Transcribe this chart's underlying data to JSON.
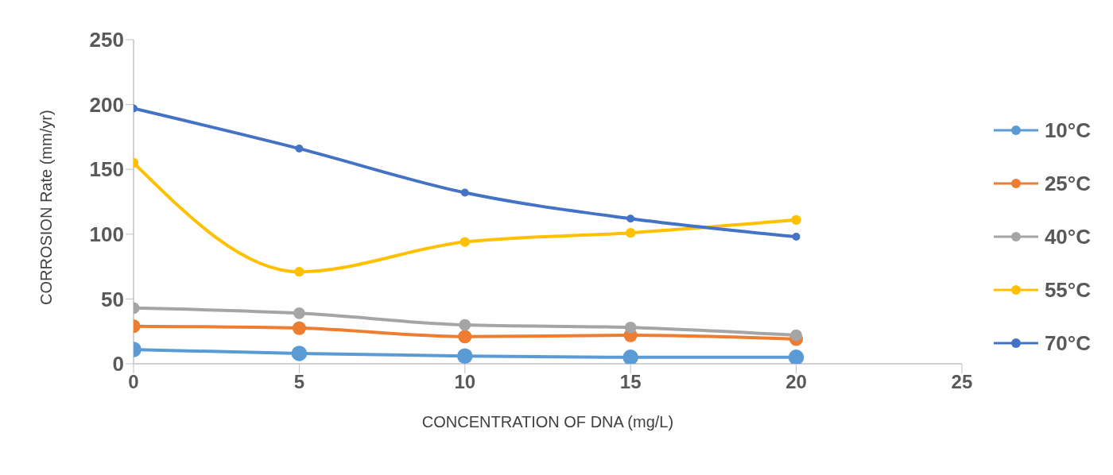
{
  "chart_data": {
    "type": "line",
    "xlabel": "CONCENTRATION  OF DNA  (mg/L)",
    "ylabel": "CORROSION  Rate (mm/yr)",
    "x": [
      0,
      5,
      10,
      15,
      20
    ],
    "series": [
      {
        "name": "10°C",
        "color": "#5b9bd5",
        "values": [
          11,
          8,
          6,
          5,
          5
        ]
      },
      {
        "name": "25°C",
        "color": "#ed7d31",
        "values": [
          29,
          27.5,
          21,
          22,
          19
        ]
      },
      {
        "name": "40°C",
        "color": "#a5a5a5",
        "values": [
          43,
          39,
          30,
          28,
          22
        ]
      },
      {
        "name": "55°C",
        "color": "#ffc000",
        "values": [
          155,
          71,
          94,
          101,
          111
        ]
      },
      {
        "name": "70°C",
        "color": "#4472c4",
        "values": [
          197,
          166,
          132,
          112,
          98
        ]
      }
    ],
    "xlim": [
      0,
      25
    ],
    "xticks": [
      0,
      5,
      10,
      15,
      20,
      25
    ],
    "ylim": [
      0,
      250
    ],
    "yticks": [
      0,
      50,
      100,
      150,
      200,
      250
    ],
    "grid": false,
    "legend": "right",
    "marker": "circle",
    "line_style": "solid"
  }
}
